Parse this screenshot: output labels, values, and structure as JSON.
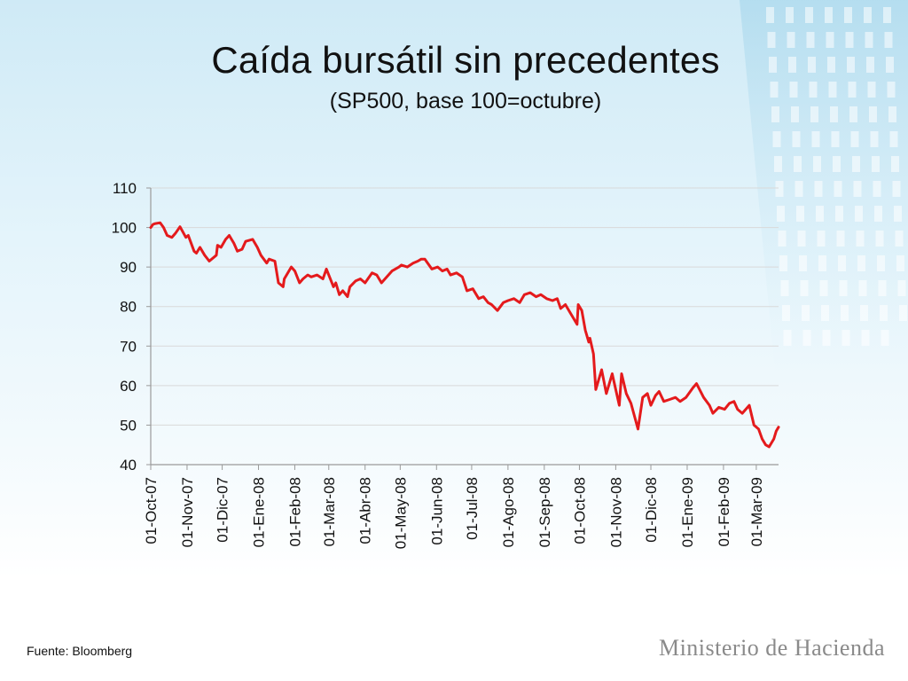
{
  "slide": {
    "title": "Caída bursátil sin precedentes",
    "subtitle": "(SP500, base 100=octubre)",
    "source": "Fuente: Bloomberg",
    "brand": "Ministerio de Hacienda"
  },
  "colors": {
    "series": "#e41a1c",
    "axis": "#9a9a9a",
    "grid": "#d9d9d9",
    "text": "#111111",
    "brand": "#8a8a8a"
  },
  "chart_data": {
    "type": "line",
    "title": "Caída bursátil sin precedentes",
    "subtitle": "(SP500, base 100=octubre)",
    "xlabel": "",
    "ylabel": "",
    "ylim": [
      40,
      110
    ],
    "yticks": [
      40,
      50,
      60,
      70,
      80,
      90,
      100,
      110
    ],
    "xlim": [
      "2007-10-01",
      "2009-03-20"
    ],
    "xtick_dates": [
      "2007-10-01",
      "2007-11-01",
      "2007-12-01",
      "2008-01-01",
      "2008-02-01",
      "2008-03-01",
      "2008-04-01",
      "2008-05-01",
      "2008-06-01",
      "2008-07-01",
      "2008-08-01",
      "2008-09-01",
      "2008-10-01",
      "2008-11-01",
      "2008-12-01",
      "2009-01-01",
      "2009-02-01",
      "2009-03-01"
    ],
    "xtick_labels": [
      "01-Oct-07",
      "01-Nov-07",
      "01-Dic-07",
      "01-Ene-08",
      "01-Feb-08",
      "01-Mar-08",
      "01-Abr-08",
      "01-May-08",
      "01-Jun-08",
      "01-Jul-08",
      "01-Ago-08",
      "01-Sep-08",
      "01-Oct-08",
      "01-Nov-08",
      "01-Dic-08",
      "01-Ene-09",
      "01-Feb-09",
      "01-Mar-09"
    ],
    "grid": true,
    "legend": "none",
    "series": [
      {
        "x": [
          "2007-10-01",
          "2007-10-03",
          "2007-10-05",
          "2007-10-09",
          "2007-10-12",
          "2007-10-15",
          "2007-10-19",
          "2007-10-22",
          "2007-10-26",
          "2007-10-31",
          "2007-11-02",
          "2007-11-07",
          "2007-11-09",
          "2007-11-12",
          "2007-11-16",
          "2007-11-20",
          "2007-11-26",
          "2007-11-27",
          "2007-11-30",
          "2007-12-04",
          "2007-12-07",
          "2007-12-11",
          "2007-12-14",
          "2007-12-18",
          "2007-12-21",
          "2007-12-27",
          "2007-12-31",
          "2008-01-03",
          "2008-01-08",
          "2008-01-10",
          "2008-01-15",
          "2008-01-18",
          "2008-01-22",
          "2008-01-23",
          "2008-01-25",
          "2008-01-29",
          "2008-02-01",
          "2008-02-05",
          "2008-02-08",
          "2008-02-12",
          "2008-02-15",
          "2008-02-20",
          "2008-02-25",
          "2008-02-28",
          "2008-03-05",
          "2008-03-07",
          "2008-03-10",
          "2008-03-13",
          "2008-03-17",
          "2008-03-19",
          "2008-03-24",
          "2008-03-28",
          "2008-04-01",
          "2008-04-07",
          "2008-04-11",
          "2008-04-15",
          "2008-04-18",
          "2008-04-24",
          "2008-04-30",
          "2008-05-02",
          "2008-05-07",
          "2008-05-12",
          "2008-05-16",
          "2008-05-19",
          "2008-05-22",
          "2008-05-28",
          "2008-06-02",
          "2008-06-06",
          "2008-06-10",
          "2008-06-13",
          "2008-06-18",
          "2008-06-23",
          "2008-06-27",
          "2008-07-02",
          "2008-07-07",
          "2008-07-11",
          "2008-07-15",
          "2008-07-18",
          "2008-07-23",
          "2008-07-28",
          "2008-08-01",
          "2008-08-06",
          "2008-08-11",
          "2008-08-15",
          "2008-08-20",
          "2008-08-25",
          "2008-08-29",
          "2008-09-03",
          "2008-09-08",
          "2008-09-12",
          "2008-09-15",
          "2008-09-19",
          "2008-09-24",
          "2008-09-29",
          "2008-09-30",
          "2008-10-03",
          "2008-10-06",
          "2008-10-09",
          "2008-10-10",
          "2008-10-13",
          "2008-10-15",
          "2008-10-20",
          "2008-10-24",
          "2008-10-27",
          "2008-10-29",
          "2008-11-04",
          "2008-11-06",
          "2008-11-10",
          "2008-11-14",
          "2008-11-20",
          "2008-11-24",
          "2008-11-28",
          "2008-12-01",
          "2008-12-05",
          "2008-12-08",
          "2008-12-12",
          "2008-12-17",
          "2008-12-22",
          "2008-12-26",
          "2008-12-31",
          "2009-01-06",
          "2009-01-09",
          "2009-01-15",
          "2009-01-20",
          "2009-01-23",
          "2009-01-28",
          "2009-02-02",
          "2009-02-06",
          "2009-02-10",
          "2009-02-13",
          "2009-02-17",
          "2009-02-23",
          "2009-02-27",
          "2009-03-03",
          "2009-03-06",
          "2009-03-09",
          "2009-03-12",
          "2009-03-16",
          "2009-03-18",
          "2009-03-20"
        ],
        "values": [
          100,
          100.8,
          101,
          101.2,
          100,
          98,
          97.5,
          98.5,
          100.2,
          97.5,
          98,
          94,
          93.5,
          95,
          93,
          91.5,
          93,
          95.5,
          95,
          97,
          98,
          96,
          94,
          94.5,
          96.5,
          97,
          95,
          93,
          91,
          92,
          91.5,
          86,
          85,
          87,
          88,
          90,
          89,
          86,
          87,
          88,
          87.5,
          88,
          87,
          89.5,
          85,
          86,
          83,
          84,
          82.5,
          85,
          86.5,
          87,
          86,
          88.5,
          88,
          86,
          87,
          89,
          90,
          90.5,
          90,
          91,
          91.5,
          92,
          92,
          89.5,
          90,
          89,
          89.5,
          88,
          88.5,
          87.5,
          84,
          84.5,
          82,
          82.5,
          81,
          80.5,
          79,
          81,
          81.5,
          82,
          81,
          83,
          83.5,
          82.5,
          83,
          82,
          81.5,
          82,
          79.5,
          80.5,
          78,
          75.5,
          80.5,
          79,
          74,
          71,
          72,
          68,
          59,
          64,
          58,
          61,
          63,
          55,
          63,
          58,
          55.5,
          49,
          57,
          58,
          55,
          57.5,
          58.5,
          56,
          56.5,
          57,
          56,
          57,
          59.5,
          60.5,
          57,
          55,
          53,
          54.5,
          54,
          55.5,
          56,
          54,
          53,
          55,
          50,
          49,
          46.5,
          45,
          44.5,
          46.5,
          48.5,
          49.5
        ]
      }
    ]
  }
}
